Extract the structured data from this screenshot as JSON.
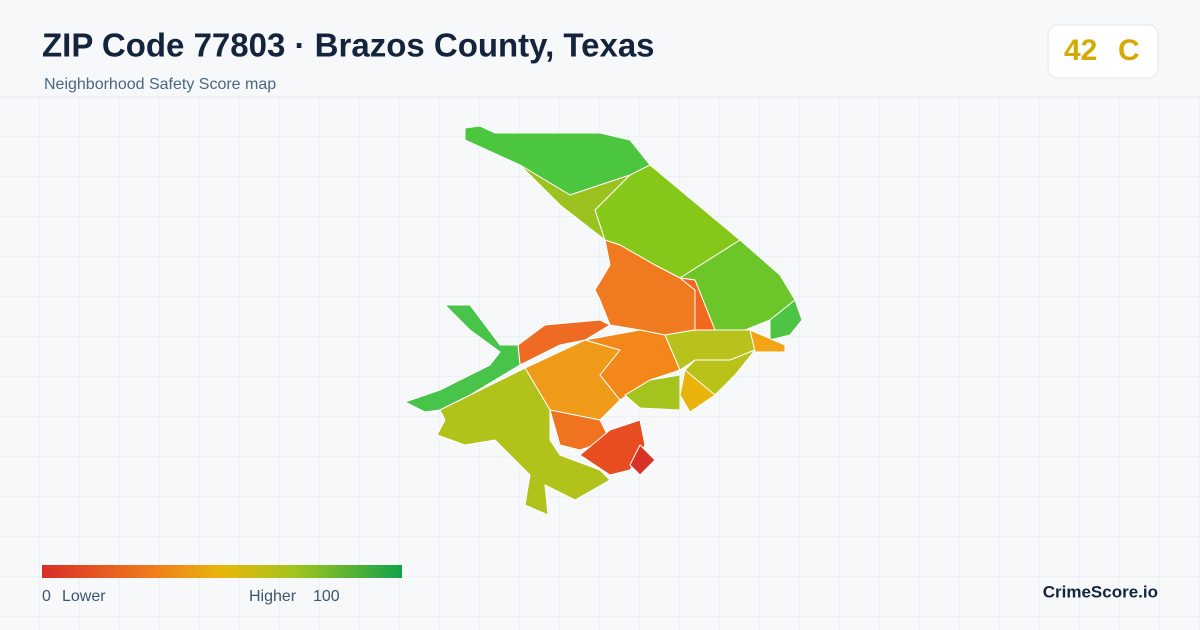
{
  "header": {
    "title": "ZIP Code 77803 · Brazos County, Texas",
    "subtitle": "Neighborhood Safety Score map"
  },
  "score": {
    "value": 42,
    "grade": "C"
  },
  "legend": {
    "min": 0,
    "min_label": "Lower",
    "max_label": "Higher",
    "max": 100
  },
  "brand": "CrimeScore.io"
}
